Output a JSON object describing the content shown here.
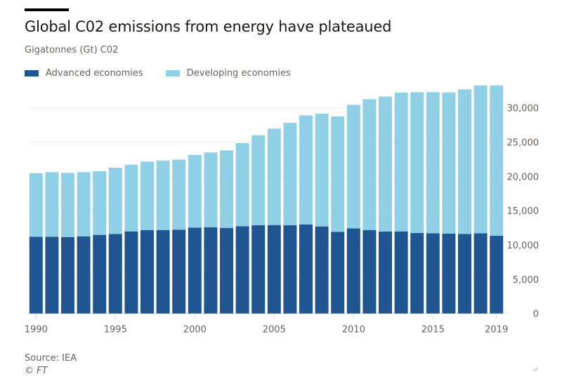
{
  "header": {
    "title": "Global C02 emissions from energy have plateaued",
    "subtitle": "Gigatonnes (Gt) C02"
  },
  "legend": [
    {
      "label": "Advanced economies",
      "color": "#1f5591"
    },
    {
      "label": "Developing economies",
      "color": "#8fd0e7"
    }
  ],
  "footer": {
    "source": "Source: IEA",
    "copyright": "© FT"
  },
  "chart_data": {
    "type": "bar",
    "stacked": true,
    "title": "Global C02 emissions from energy have plateaued",
    "subtitle": "Gigatonnes (Gt) C02",
    "xlabel": "",
    "ylabel": "",
    "ylim": [
      0,
      35000
    ],
    "yticks": [
      0,
      5000,
      10000,
      15000,
      20000,
      25000,
      30000
    ],
    "ytick_labels": [
      "0",
      "5,000",
      "10,000",
      "15,000",
      "20,000",
      "25,000",
      "30,000"
    ],
    "y_axis_side": "right",
    "xtick_labels": [
      "1990",
      "1995",
      "2000",
      "2005",
      "2010",
      "2015",
      "2019"
    ],
    "grid": true,
    "legend_position": "top-left",
    "categories": [
      "1990",
      "1991",
      "1992",
      "1993",
      "1994",
      "1995",
      "1996",
      "1997",
      "1998",
      "1999",
      "2000",
      "2001",
      "2002",
      "2003",
      "2004",
      "2005",
      "2006",
      "2007",
      "2008",
      "2009",
      "2010",
      "2011",
      "2012",
      "2013",
      "2014",
      "2015",
      "2016",
      "2017",
      "2018",
      "2019"
    ],
    "series": [
      {
        "name": "Advanced economies",
        "color": "#1f5591",
        "values": [
          11200,
          11200,
          11160,
          11260,
          11470,
          11610,
          11980,
          12180,
          12180,
          12230,
          12530,
          12590,
          12490,
          12740,
          12870,
          12900,
          12870,
          13000,
          12700,
          11920,
          12430,
          12180,
          11950,
          11980,
          11740,
          11710,
          11640,
          11610,
          11710,
          11330
        ]
      },
      {
        "name": "Developing economies",
        "color": "#8fd0e7",
        "values": [
          9280,
          9420,
          9360,
          9360,
          9280,
          9660,
          9730,
          9980,
          10140,
          10230,
          10610,
          10900,
          11300,
          12110,
          13140,
          14070,
          14950,
          15910,
          16450,
          16820,
          18020,
          19090,
          19690,
          20240,
          20550,
          20580,
          20610,
          21090,
          21570,
          21950
        ]
      }
    ]
  }
}
